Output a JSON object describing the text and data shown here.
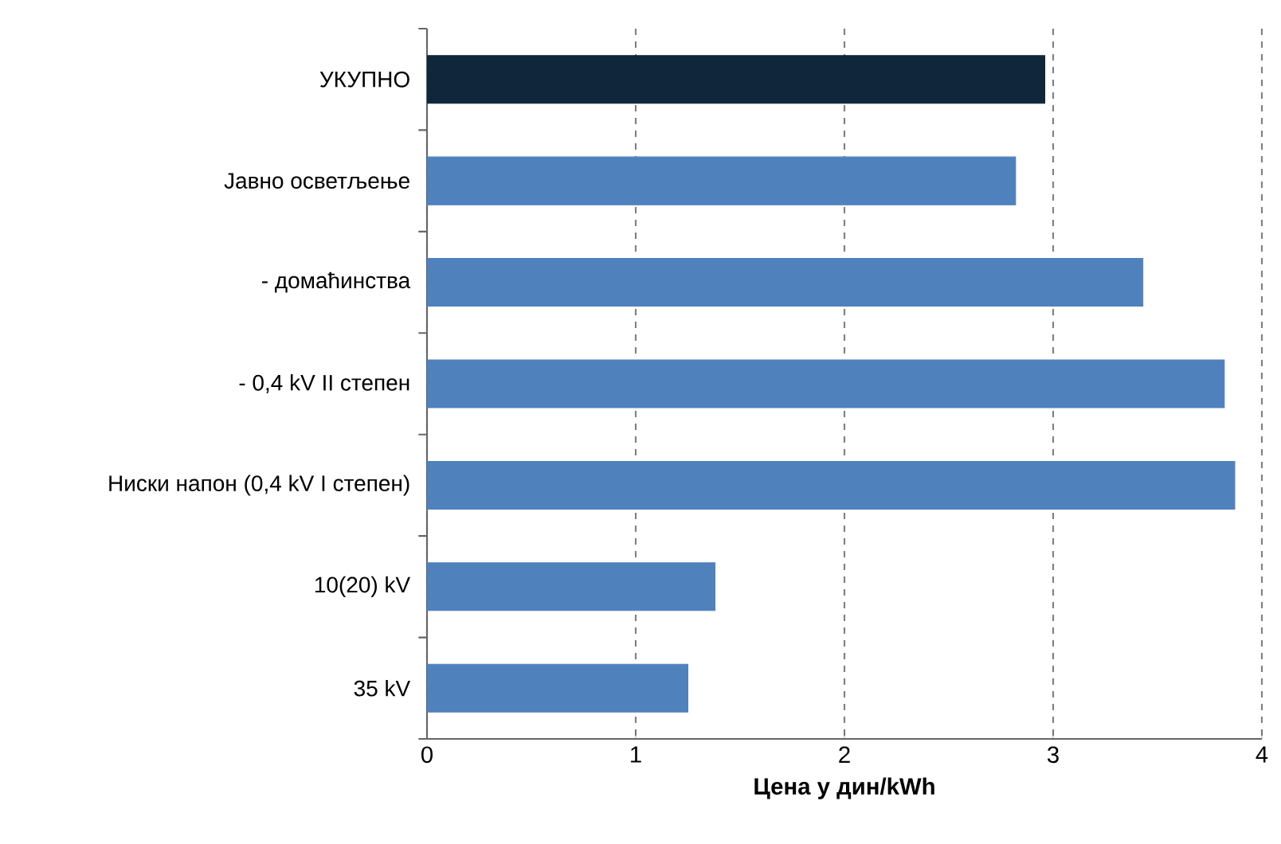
{
  "chart_data": {
    "type": "bar",
    "orientation": "horizontal",
    "xlabel": "Цена у дин/kWh",
    "categories": [
      "УКУПНО",
      "Јавно осветљење",
      "- домаћинства",
      "- 0,4 kV II степен",
      "Ниски напон (0,4 kV I степен)",
      "10(20) kV",
      "35 kV"
    ],
    "values": [
      2.96,
      2.82,
      3.43,
      3.82,
      3.87,
      1.38,
      1.25
    ],
    "colors": [
      "#10263b",
      "#4f81bd",
      "#4f81bd",
      "#4f81bd",
      "#4f81bd",
      "#4f81bd",
      "#4f81bd"
    ],
    "xlim": [
      0,
      4
    ],
    "xticks": [
      0,
      1,
      2,
      3,
      4
    ],
    "grid": "x"
  }
}
